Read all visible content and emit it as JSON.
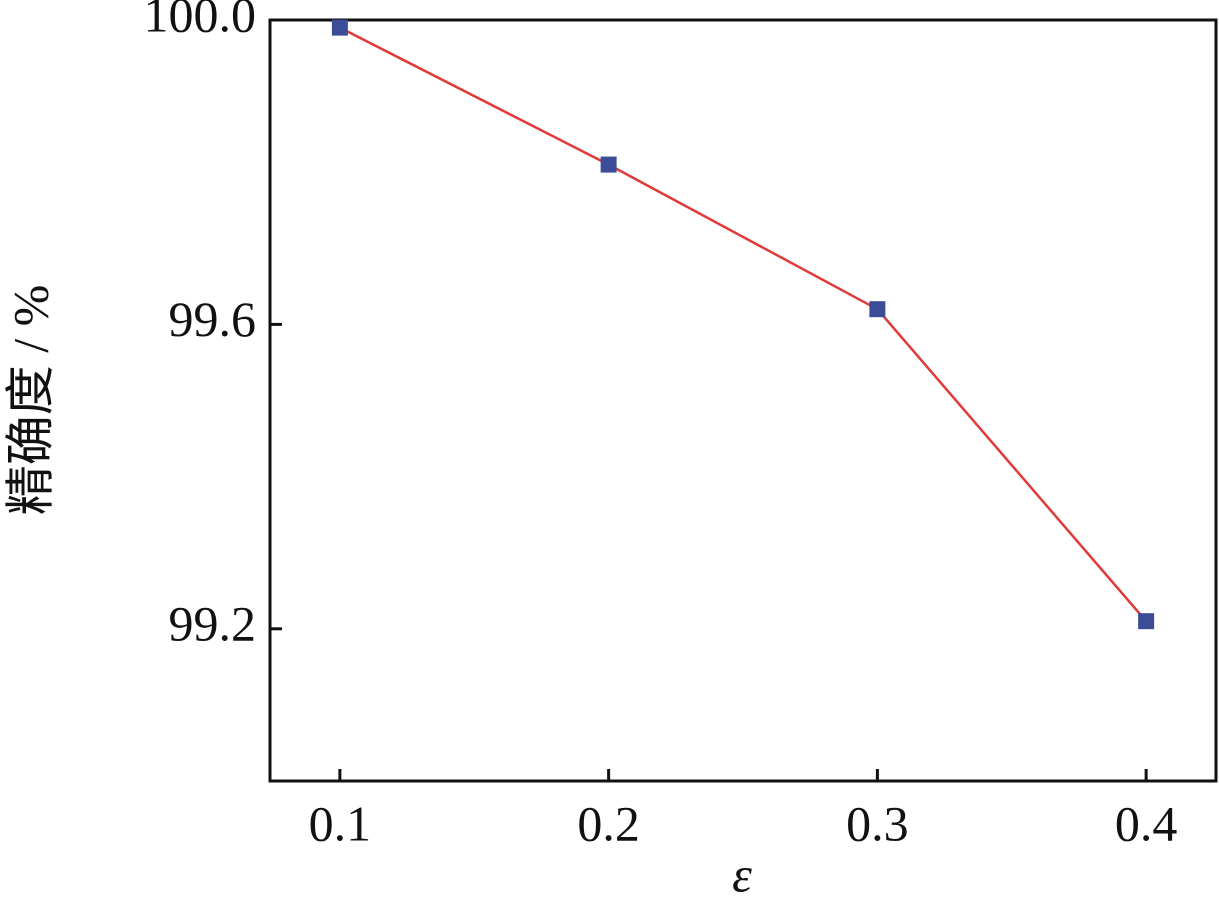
{
  "chart_data": {
    "type": "line",
    "x_label": "ε",
    "y_label": "精确度 / %",
    "x": [
      0.1,
      0.2,
      0.3,
      0.4
    ],
    "values": [
      99.99,
      99.81,
      99.62,
      99.21
    ],
    "line_color": "#e03a3a",
    "marker_color": "#3b4d96",
    "xlim": [
      0.074,
      0.426
    ],
    "xticks": [
      0.1,
      0.2,
      0.3,
      0.4
    ],
    "ylim": [
      99.0,
      100.0
    ],
    "yticks": [
      {
        "value": 99.2,
        "label": "99.2"
      },
      {
        "value": 99.6,
        "label": "99.6"
      },
      {
        "value": 100.0,
        "label": "100.0"
      }
    ],
    "grid": false
  }
}
